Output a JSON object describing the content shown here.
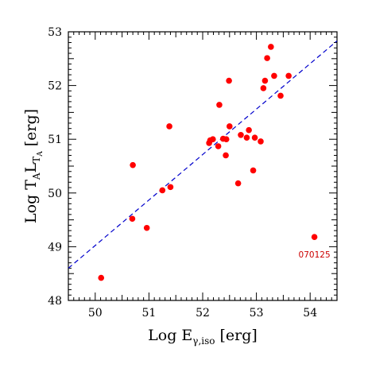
{
  "chart_data": {
    "type": "scatter",
    "xlabel": {
      "base": "Log E",
      "sub": "γ,iso",
      "unit": "[erg]"
    },
    "ylabel": {
      "base": "Log T",
      "sub1": "A",
      "mid": "L",
      "sub2": "T",
      "sub3": "A",
      "unit": "[erg]"
    },
    "xlim": [
      49.5,
      54.5
    ],
    "ylim": [
      48,
      53
    ],
    "xticks": [
      50,
      51,
      52,
      53,
      54
    ],
    "yticks": [
      48,
      49,
      50,
      51,
      52,
      53
    ],
    "xtick_labels": [
      "50",
      "51",
      "52",
      "53",
      "54"
    ],
    "ytick_labels": [
      "48",
      "49",
      "50",
      "51",
      "52",
      "53"
    ],
    "grid": false,
    "colors": {
      "points": "#ff0000",
      "fit_line": "#0000cc",
      "axes": "#000000",
      "annotation": "#cc0000"
    },
    "series": [
      {
        "x": [
          50.11,
          50.69,
          50.7,
          50.96,
          51.25,
          51.38,
          51.4,
          52.12,
          52.14,
          52.19,
          52.29,
          52.31,
          52.38,
          52.43,
          52.44,
          52.49,
          52.5,
          52.66,
          52.71,
          52.82,
          52.86,
          52.94,
          52.97,
          53.08,
          53.13,
          53.16,
          53.2,
          53.27,
          53.33,
          53.45,
          53.6,
          54.08
        ],
        "y": [
          48.42,
          49.52,
          50.52,
          49.35,
          50.05,
          51.24,
          50.11,
          50.93,
          50.98,
          51.0,
          50.87,
          51.64,
          51.01,
          50.7,
          51.0,
          52.09,
          51.24,
          50.18,
          51.08,
          51.03,
          51.17,
          50.42,
          51.03,
          50.96,
          51.95,
          52.09,
          52.51,
          52.72,
          52.18,
          51.81,
          52.18,
          49.18
        ]
      }
    ],
    "fit_line": {
      "x": [
        49.5,
        54.5
      ],
      "y": [
        48.6,
        52.83
      ],
      "style": "dashed"
    },
    "annotations": [
      {
        "text": "070125",
        "x": 54.08,
        "y": 48.8
      }
    ]
  }
}
